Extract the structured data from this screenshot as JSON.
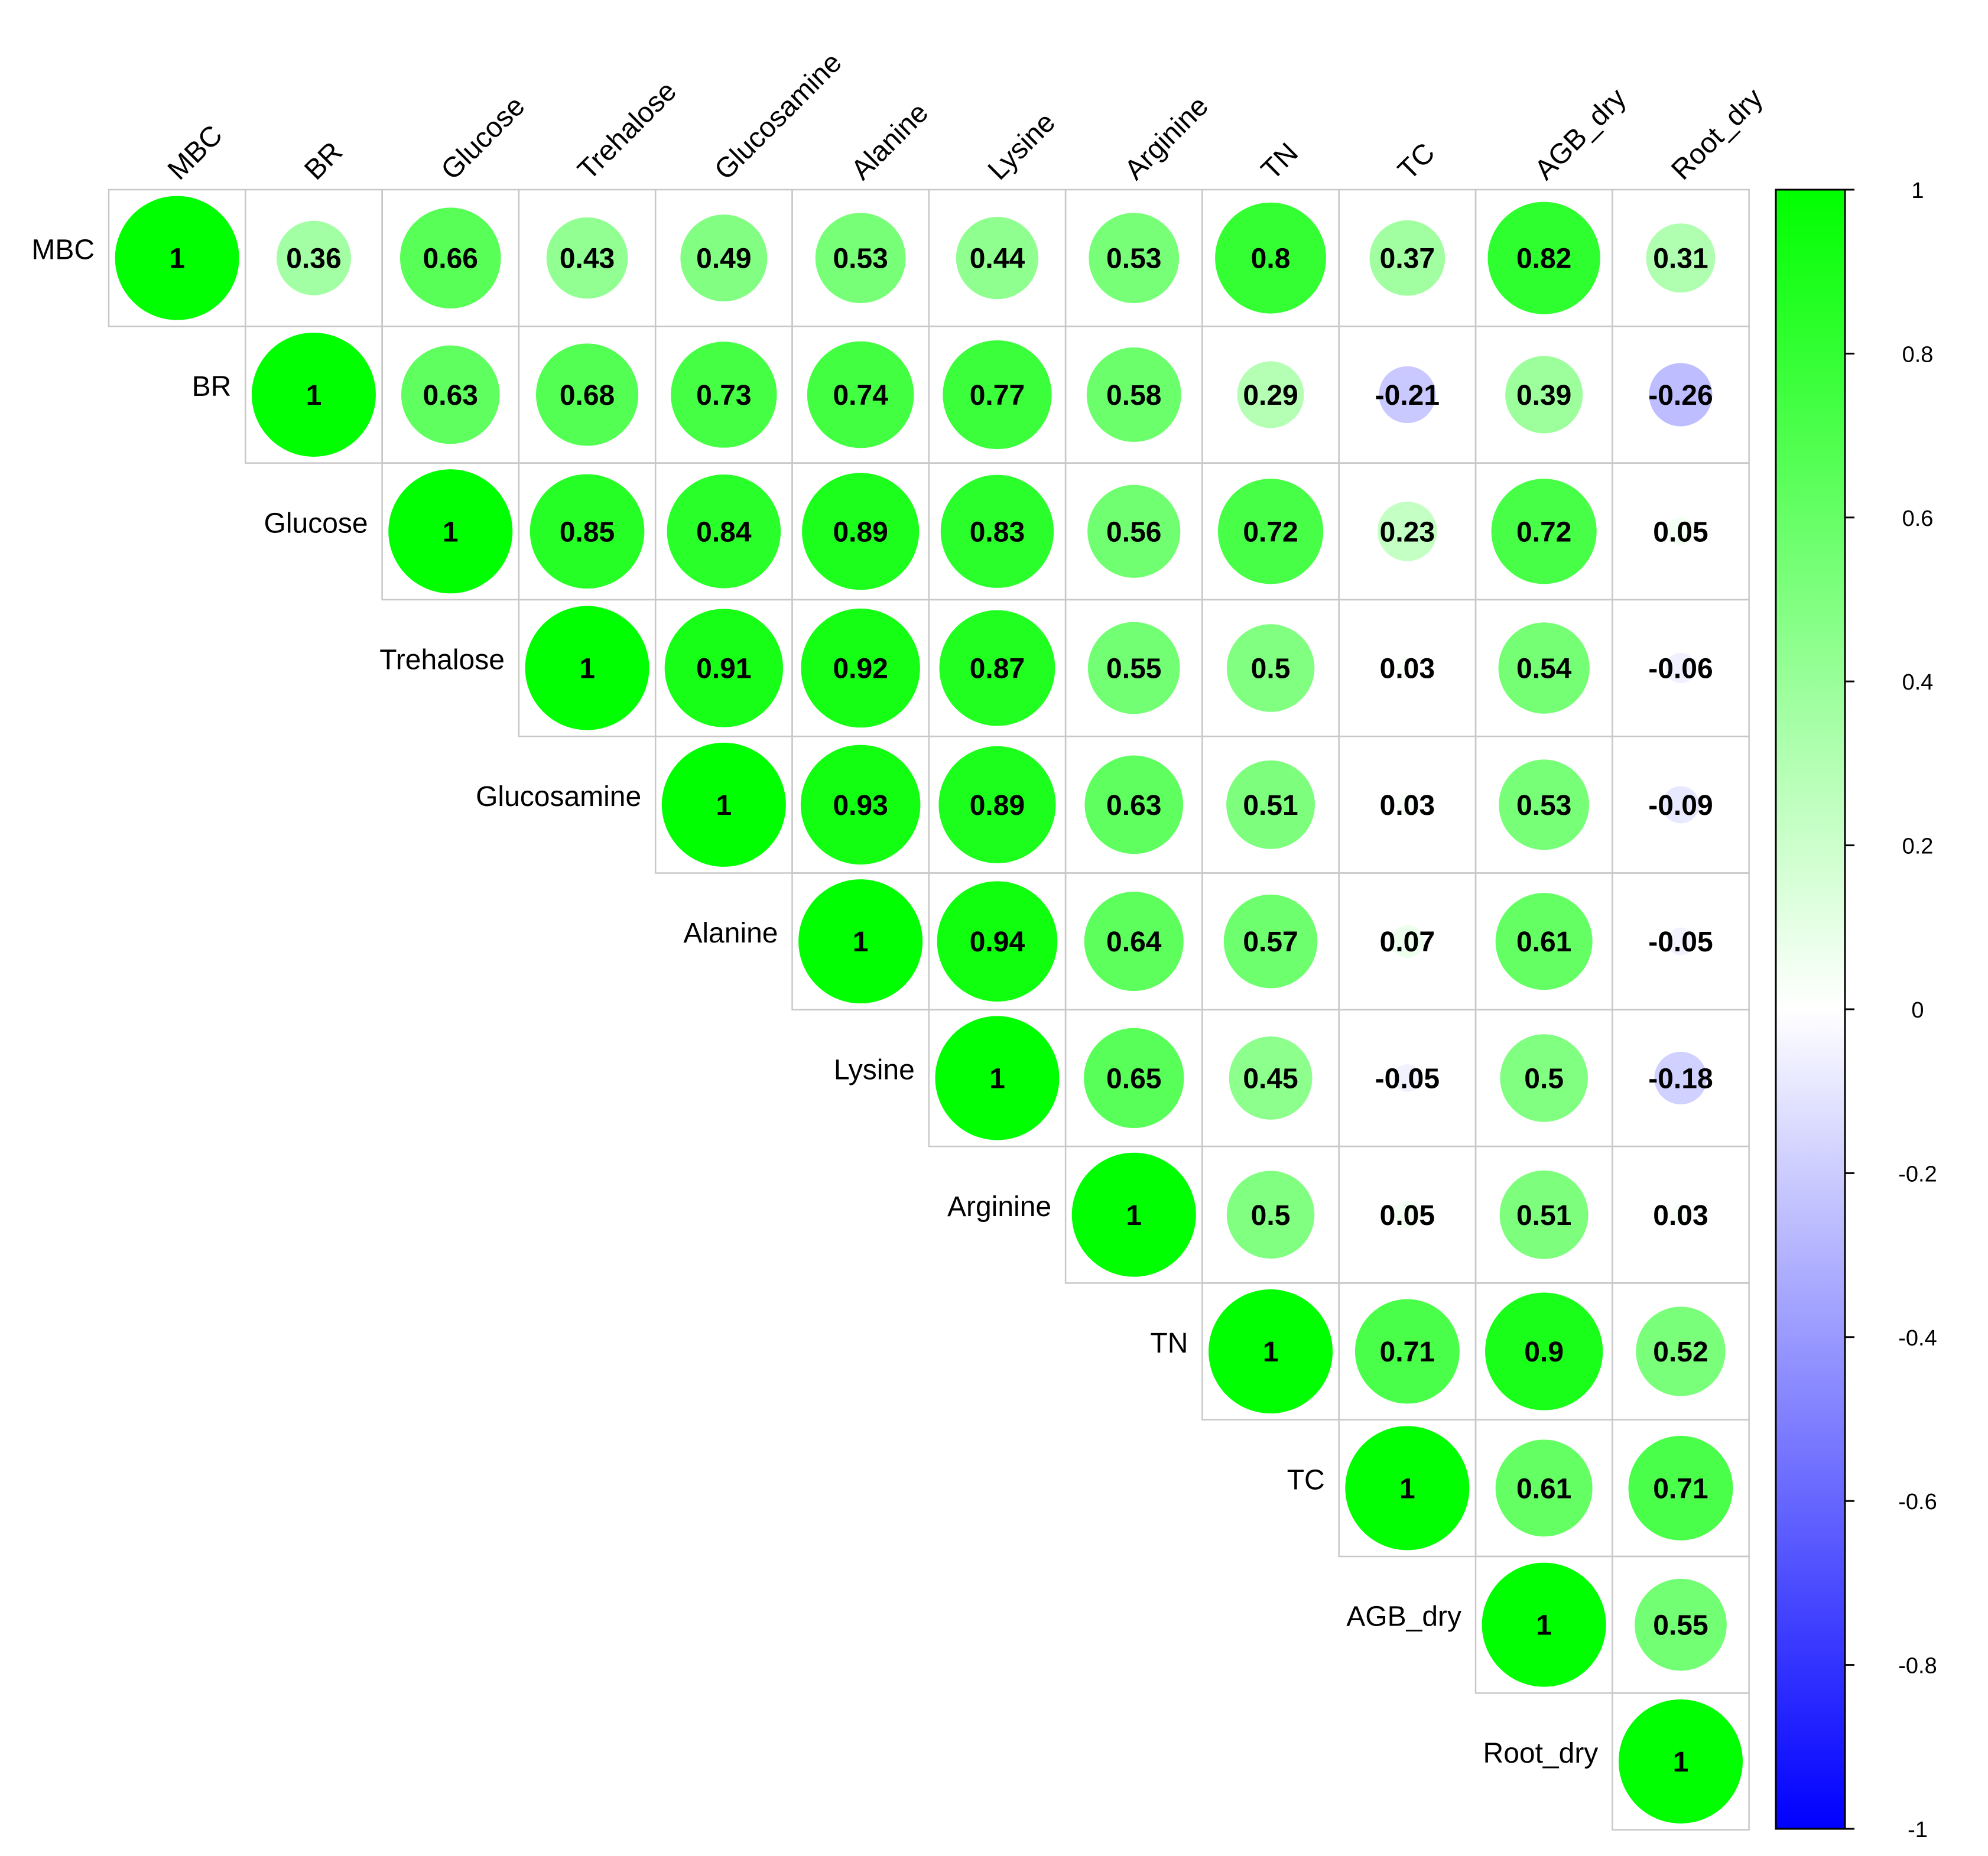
{
  "chart_data": {
    "type": "heatmap",
    "variables": [
      "MBC",
      "BR",
      "Glucose",
      "Trehalose",
      "Glucosamine",
      "Alanine",
      "Lysine",
      "Arginine",
      "TN",
      "TC",
      "AGB_dry",
      "Root_dry"
    ],
    "matrix": [
      [
        1,
        0.36,
        0.66,
        0.43,
        0.49,
        0.53,
        0.44,
        0.53,
        0.8,
        0.37,
        0.82,
        0.31
      ],
      [
        0.36,
        1,
        0.63,
        0.68,
        0.73,
        0.74,
        0.77,
        0.58,
        0.29,
        -0.21,
        0.39,
        -0.26
      ],
      [
        0.66,
        0.63,
        1,
        0.85,
        0.84,
        0.89,
        0.83,
        0.56,
        0.72,
        0.23,
        0.72,
        0.05
      ],
      [
        0.43,
        0.68,
        0.85,
        1,
        0.91,
        0.92,
        0.87,
        0.55,
        0.5,
        0.03,
        0.54,
        -0.06
      ],
      [
        0.49,
        0.73,
        0.84,
        0.91,
        1,
        0.93,
        0.89,
        0.63,
        0.51,
        0.03,
        0.53,
        -0.09
      ],
      [
        0.53,
        0.74,
        0.89,
        0.92,
        0.93,
        1,
        0.94,
        0.64,
        0.57,
        0.07,
        0.61,
        -0.05
      ],
      [
        0.44,
        0.77,
        0.83,
        0.87,
        0.89,
        0.94,
        1,
        0.65,
        0.45,
        -0.05,
        0.5,
        -0.18
      ],
      [
        0.53,
        0.58,
        0.56,
        0.55,
        0.63,
        0.64,
        0.65,
        1,
        0.5,
        0.05,
        0.51,
        0.03
      ],
      [
        0.8,
        0.29,
        0.72,
        0.5,
        0.51,
        0.57,
        0.45,
        0.5,
        1,
        0.71,
        0.9,
        0.52
      ],
      [
        0.37,
        -0.21,
        0.23,
        0.03,
        0.03,
        0.07,
        -0.05,
        0.05,
        0.71,
        1,
        0.61,
        0.71
      ],
      [
        0.82,
        0.39,
        0.72,
        0.54,
        0.53,
        0.61,
        0.5,
        0.51,
        0.9,
        0.61,
        1,
        0.55
      ],
      [
        0.31,
        -0.26,
        0.05,
        -0.06,
        -0.09,
        -0.05,
        -0.18,
        0.03,
        0.52,
        0.71,
        0.55,
        1
      ]
    ],
    "display": "upper-triangle circles sized and colored by correlation, coefficients printed",
    "color_scale": {
      "range": [
        -1,
        1
      ],
      "low_color": "#0000ff",
      "mid_color": "#ffffff",
      "high_color": "#00ff00",
      "ticks": [
        "1",
        "0.8",
        "0.6",
        "0.4",
        "0.2",
        "0",
        "-0.2",
        "-0.4",
        "-0.6",
        "-0.8",
        "-1"
      ]
    },
    "legend_placement": "right"
  }
}
